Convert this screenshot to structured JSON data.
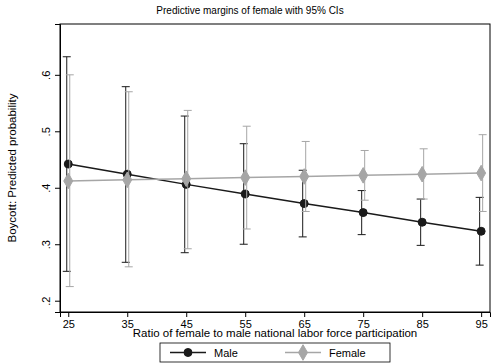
{
  "chart_data": {
    "type": "line",
    "title": "Predictive margins of female with 95% CIs",
    "x_label": "Ratio of female to male national labor force participation",
    "y_label": "Boycott: Predicted probability",
    "x": [
      25,
      35,
      45,
      55,
      65,
      75,
      85,
      95
    ],
    "xlim": [
      23.6,
      96.5
    ],
    "xticks": [
      25,
      35,
      45,
      55,
      65,
      75,
      85,
      95
    ],
    "ylim": [
      0.18,
      0.69
    ],
    "yticks": [
      {
        "value": 0.2,
        "label": ".2"
      },
      {
        "value": 0.3,
        "label": ".3"
      },
      {
        "value": 0.4,
        "label": ".4"
      },
      {
        "value": 0.5,
        "label": ".5"
      },
      {
        "value": 0.6,
        "label": ".6"
      }
    ],
    "grid": false,
    "legend": "bottom",
    "series": [
      {
        "name": "Male",
        "color": "#1a1a1a",
        "marker": "circle",
        "line_style": "solid",
        "values": [
          0.442,
          0.424,
          0.406,
          0.389,
          0.372,
          0.356,
          0.339,
          0.323
        ],
        "ci_low": [
          0.252,
          0.268,
          0.285,
          0.3,
          0.313,
          0.317,
          0.298,
          0.263
        ],
        "ci_high": [
          0.632,
          0.579,
          0.527,
          0.478,
          0.431,
          0.395,
          0.38,
          0.383
        ]
      },
      {
        "name": "Female",
        "color": "#a6a6a6",
        "marker": "diamond",
        "line_style": "solid",
        "values": [
          0.412,
          0.414,
          0.416,
          0.418,
          0.42,
          0.422,
          0.424,
          0.426
        ],
        "ci_low": [
          0.225,
          0.26,
          0.292,
          0.327,
          0.358,
          0.378,
          0.38,
          0.358
        ],
        "ci_high": [
          0.6,
          0.57,
          0.537,
          0.509,
          0.482,
          0.466,
          0.469,
          0.494
        ]
      }
    ]
  }
}
